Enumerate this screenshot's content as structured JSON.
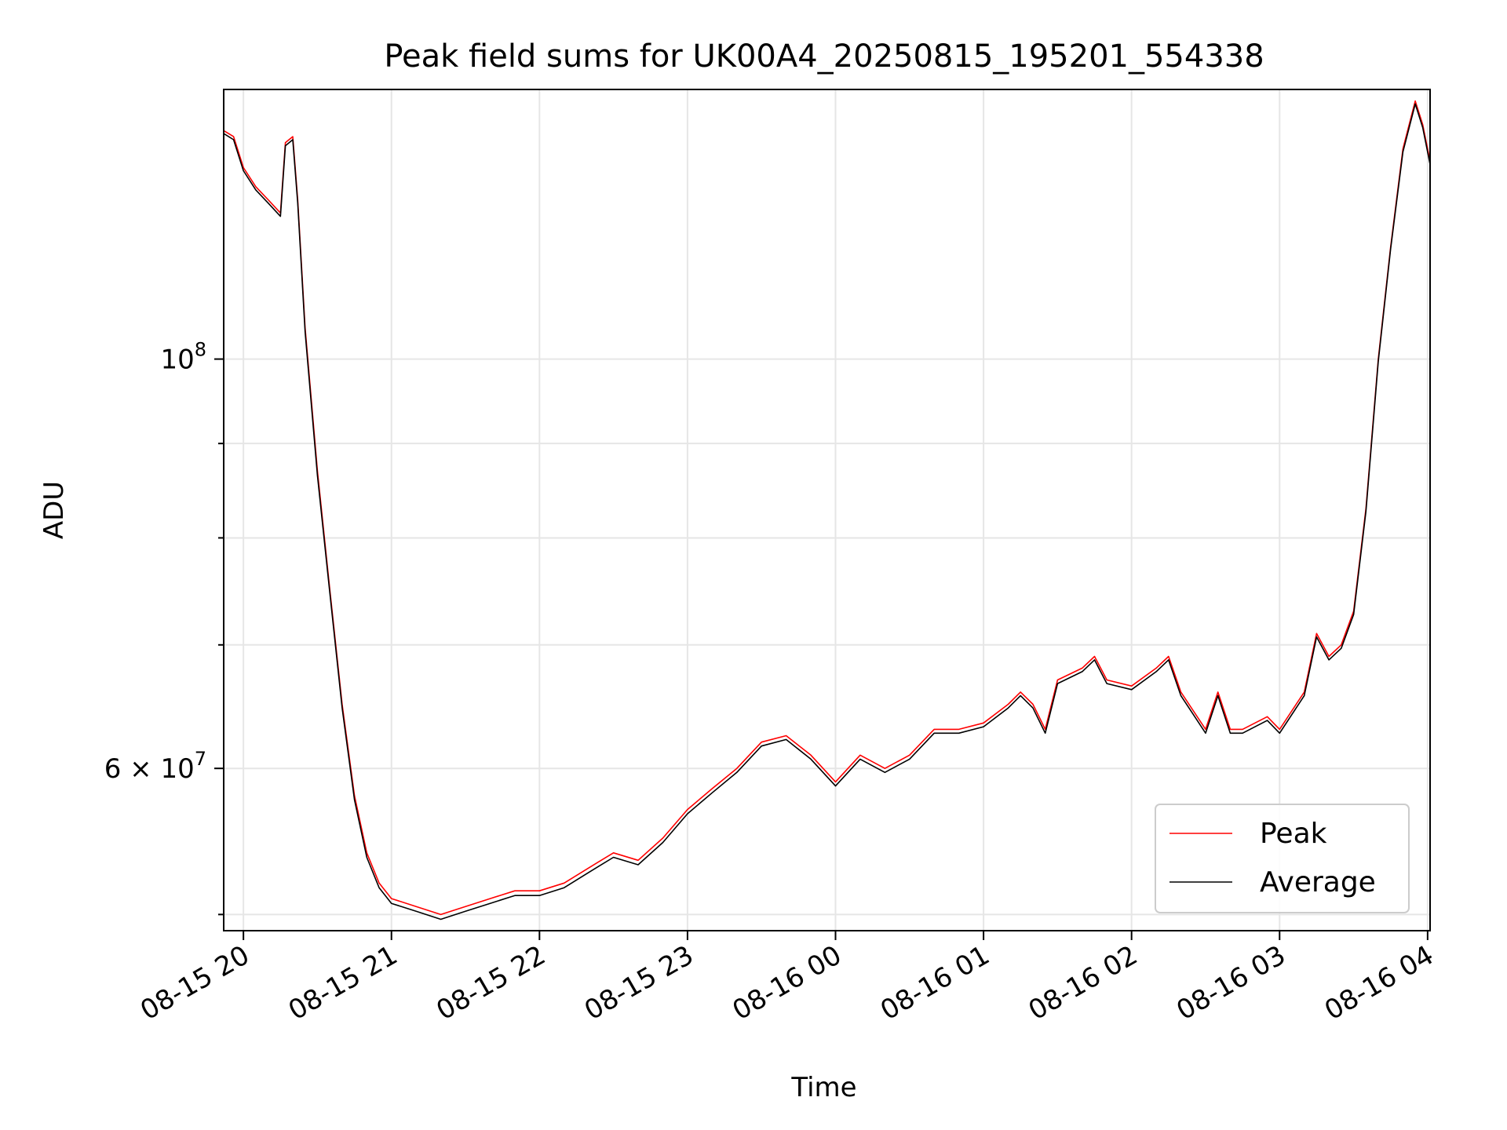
{
  "chart_data": {
    "type": "line",
    "title": "Peak field sums for UK00A4_20250815_195201_554338",
    "xlabel": "Time",
    "ylabel": "ADU",
    "y_scale": "log",
    "ylim": [
      49000000,
      140000000
    ],
    "xlim": [
      "2025-08-15 19:52",
      "2025-08-16 04:01"
    ],
    "grid": true,
    "legend_position": "lower right",
    "x_ticks": [
      "2025-08-15 20:00",
      "2025-08-15 21:00",
      "2025-08-15 22:00",
      "2025-08-15 23:00",
      "2025-08-16 00:00",
      "2025-08-16 01:00",
      "2025-08-16 02:00",
      "2025-08-16 03:00",
      "2025-08-16 04:00"
    ],
    "x_tick_labels": [
      "08-15 20",
      "08-15 21",
      "08-15 22",
      "08-15 23",
      "08-16 00",
      "08-16 01",
      "08-16 02",
      "08-16 03",
      "08-16 04"
    ],
    "y_major_ticks": [
      {
        "value": 100000000,
        "base": "10",
        "exp": "8"
      },
      {
        "value": 60000000,
        "base": "6 × 10",
        "exp": "7"
      }
    ],
    "y_minor_ticks": [
      50000000,
      70000000,
      80000000,
      90000000
    ],
    "x": [
      "2025-08-15 19:52",
      "2025-08-15 19:56",
      "2025-08-15 20:00",
      "2025-08-15 20:05",
      "2025-08-15 20:10",
      "2025-08-15 20:15",
      "2025-08-15 20:17",
      "2025-08-15 20:20",
      "2025-08-15 20:22",
      "2025-08-15 20:25",
      "2025-08-15 20:30",
      "2025-08-15 20:35",
      "2025-08-15 20:40",
      "2025-08-15 20:45",
      "2025-08-15 20:50",
      "2025-08-15 20:55",
      "2025-08-15 21:00",
      "2025-08-15 21:10",
      "2025-08-15 21:20",
      "2025-08-15 21:30",
      "2025-08-15 21:40",
      "2025-08-15 21:50",
      "2025-08-15 22:00",
      "2025-08-15 22:10",
      "2025-08-15 22:20",
      "2025-08-15 22:30",
      "2025-08-15 22:40",
      "2025-08-15 22:50",
      "2025-08-15 23:00",
      "2025-08-15 23:10",
      "2025-08-15 23:20",
      "2025-08-15 23:30",
      "2025-08-15 23:40",
      "2025-08-15 23:50",
      "2025-08-16 00:00",
      "2025-08-16 00:10",
      "2025-08-16 00:20",
      "2025-08-16 00:30",
      "2025-08-16 00:40",
      "2025-08-16 00:50",
      "2025-08-16 01:00",
      "2025-08-16 01:10",
      "2025-08-16 01:15",
      "2025-08-16 01:20",
      "2025-08-16 01:25",
      "2025-08-16 01:30",
      "2025-08-16 01:40",
      "2025-08-16 01:45",
      "2025-08-16 01:50",
      "2025-08-16 02:00",
      "2025-08-16 02:10",
      "2025-08-16 02:15",
      "2025-08-16 02:20",
      "2025-08-16 02:30",
      "2025-08-16 02:35",
      "2025-08-16 02:40",
      "2025-08-16 02:45",
      "2025-08-16 02:55",
      "2025-08-16 03:00",
      "2025-08-16 03:10",
      "2025-08-16 03:15",
      "2025-08-16 03:20",
      "2025-08-16 03:25",
      "2025-08-16 03:30",
      "2025-08-16 03:35",
      "2025-08-16 03:40",
      "2025-08-16 03:45",
      "2025-08-16 03:50",
      "2025-08-16 03:55",
      "2025-08-16 03:58",
      "2025-08-16 04:01"
    ],
    "series": [
      {
        "name": "Peak",
        "color": "#ff0000",
        "values": [
          133000000,
          132000000,
          127000000,
          124000000,
          122000000,
          120000000,
          131000000,
          132000000,
          122000000,
          104000000,
          87000000,
          75000000,
          65000000,
          58000000,
          54000000,
          52000000,
          51000000,
          50500000,
          50000000,
          50500000,
          51000000,
          51500000,
          51500000,
          52000000,
          53000000,
          54000000,
          53500000,
          55000000,
          57000000,
          58500000,
          60000000,
          62000000,
          62500000,
          61000000,
          59000000,
          61000000,
          60000000,
          61000000,
          63000000,
          63000000,
          63500000,
          65000000,
          66000000,
          65000000,
          63000000,
          67000000,
          68000000,
          69000000,
          67000000,
          66500000,
          68000000,
          69000000,
          66000000,
          63000000,
          66000000,
          63000000,
          63000000,
          64000000,
          63000000,
          66000000,
          71000000,
          69000000,
          70000000,
          73000000,
          83000000,
          100000000,
          115000000,
          130000000,
          138000000,
          134000000,
          128000000
        ]
      },
      {
        "name": "Average",
        "color": "#000000",
        "values": [
          132500000,
          131500000,
          126500000,
          123500000,
          121500000,
          119500000,
          130500000,
          131500000,
          121500000,
          103500000,
          86500000,
          74700000,
          64700000,
          57700000,
          53700000,
          51700000,
          50700000,
          50200000,
          49700000,
          50200000,
          50700000,
          51200000,
          51200000,
          51700000,
          52700000,
          53700000,
          53200000,
          54700000,
          56700000,
          58200000,
          59700000,
          61700000,
          62200000,
          60700000,
          58700000,
          60700000,
          59700000,
          60700000,
          62700000,
          62700000,
          63200000,
          64700000,
          65700000,
          64700000,
          62700000,
          66700000,
          67700000,
          68700000,
          66700000,
          66200000,
          67700000,
          68700000,
          65700000,
          62700000,
          65700000,
          62700000,
          62700000,
          63700000,
          62700000,
          65700000,
          70700000,
          68700000,
          69700000,
          72700000,
          82700000,
          99700000,
          114700000,
          129500000,
          137500000,
          133500000,
          127500000
        ]
      }
    ]
  }
}
